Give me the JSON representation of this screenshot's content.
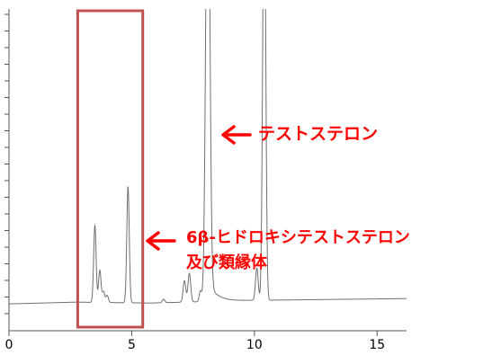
{
  "chart_data": {
    "type": "line",
    "title": "",
    "xlabel": "",
    "ylabel": "",
    "xlim": [
      0,
      16.2
    ],
    "ylim": [
      -0.15,
      1.65
    ],
    "x_ticks": [
      0,
      5,
      10,
      15
    ],
    "x_tick_labels": [
      "0",
      "5",
      "10",
      "15"
    ],
    "grid": false,
    "legend": "none",
    "series": [
      {
        "color": "#707070",
        "baseline": [
          [
            0,
            0.0
          ],
          [
            2.7,
            0.01
          ],
          [
            5.8,
            0.005
          ],
          [
            8.5,
            0.015
          ],
          [
            10.0,
            0.02
          ],
          [
            16.2,
            0.03
          ]
        ],
        "peaks": [
          {
            "rt": 3.5,
            "height": 0.43,
            "width": 0.05
          },
          {
            "rt": 3.7,
            "height": 0.18,
            "width": 0.05
          },
          {
            "rt": 3.85,
            "height": 0.06,
            "width": 0.05
          },
          {
            "rt": 4.0,
            "height": 0.04,
            "width": 0.05
          },
          {
            "rt": 4.85,
            "height": 0.65,
            "width": 0.05
          },
          {
            "rt": 6.3,
            "height": 0.02,
            "width": 0.05
          },
          {
            "rt": 7.15,
            "height": 0.12,
            "width": 0.055
          },
          {
            "rt": 7.35,
            "height": 0.16,
            "width": 0.055
          },
          {
            "rt": 7.8,
            "height": 0.06,
            "width": 0.05
          },
          {
            "rt": 8.1,
            "height": 2.8,
            "width": 0.08
          },
          {
            "rt": 10.1,
            "height": 0.18,
            "width": 0.055
          },
          {
            "rt": 10.4,
            "height": 2.5,
            "width": 0.06
          }
        ]
      }
    ],
    "highlight_box": {
      "x_range": [
        2.8,
        5.45
      ],
      "color": "#c0504d"
    },
    "annotations": [
      {
        "text": "テストステロン",
        "color": "#ff0000",
        "points_to_rt": 8.1
      },
      {
        "text": "6β-ヒドロキシテストステロン",
        "text2": "及び類縁体",
        "color": "#ff0000",
        "points_to_rt": 5.45
      }
    ]
  }
}
